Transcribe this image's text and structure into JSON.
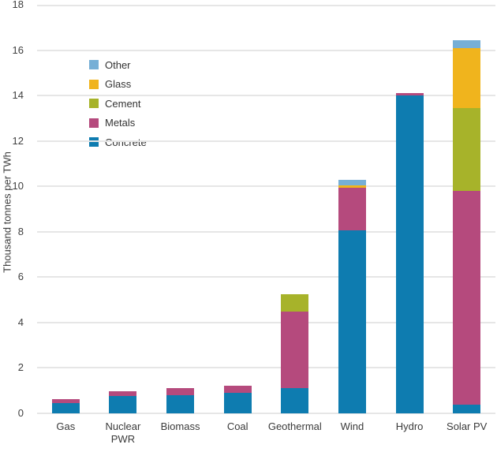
{
  "chart_data": {
    "type": "bar",
    "subtype": "stacked-vertical",
    "title": "",
    "xlabel": "",
    "ylabel": "Thousand tonnes per TWh",
    "ylim": [
      0,
      18
    ],
    "ytick_step": 2,
    "grid": true,
    "legend_position": "top-left-inside",
    "legend_order_top_to_bottom": [
      "Other",
      "Glass",
      "Cement",
      "Metals",
      "Concrete"
    ],
    "categories": [
      "Gas",
      "Nuclear PWR",
      "Biomass",
      "Coal",
      "Geothermal",
      "Wind",
      "Hydro",
      "Solar PV"
    ],
    "series": [
      {
        "name": "Concrete",
        "color": "#0e7cb0",
        "values": [
          0.45,
          0.78,
          0.8,
          0.9,
          1.1,
          8.05,
          14.0,
          0.4
        ]
      },
      {
        "name": "Metals",
        "color": "#b54a7d",
        "values": [
          0.17,
          0.18,
          0.31,
          0.31,
          3.4,
          1.9,
          0.1,
          9.4
        ]
      },
      {
        "name": "Cement",
        "color": "#a7b32a",
        "values": [
          0,
          0,
          0,
          0,
          0.75,
          0,
          0,
          3.65
        ]
      },
      {
        "name": "Glass",
        "color": "#f0b41d",
        "values": [
          0,
          0,
          0,
          0,
          0,
          0.1,
          0,
          2.65
        ]
      },
      {
        "name": "Other",
        "color": "#76afd6",
        "values": [
          0,
          0,
          0,
          0,
          0,
          0.25,
          0,
          0.35
        ]
      }
    ],
    "totals": [
      0.62,
      0.96,
      1.11,
      1.21,
      5.25,
      10.3,
      14.1,
      16.45
    ],
    "colors": {
      "gridline": "#e6e6e6",
      "tick_text": "#3f3f3f",
      "axis_title_text": "#3c3c3c",
      "background": "#ffffff"
    }
  }
}
